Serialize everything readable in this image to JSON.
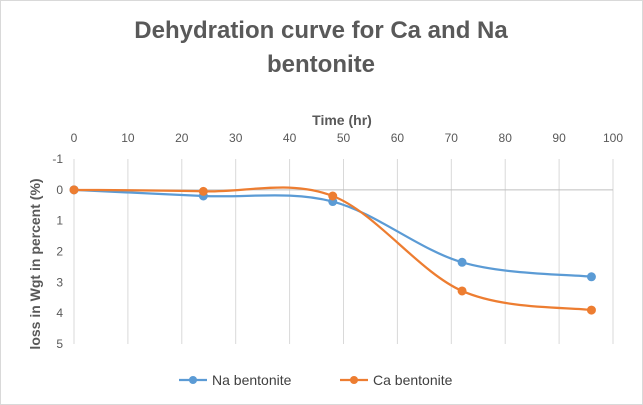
{
  "chart_data": {
    "type": "line",
    "title_lines": [
      "Dehydration curve for Ca and Na",
      "bentonite"
    ],
    "xlabel": "Time (hr)",
    "ylabel": "loss in Wgt in percent (%)",
    "x_ticks": [
      "0",
      "10",
      "20",
      "30",
      "40",
      "50",
      "60",
      "70",
      "80",
      "90",
      "100"
    ],
    "y_ticks": [
      "-1",
      "0",
      "1",
      "2",
      "3",
      "4",
      "5"
    ],
    "xlim": [
      0,
      100
    ],
    "ylim": [
      -1,
      5
    ],
    "y_axis_reversed": true,
    "x_axis_position": "top",
    "grid": "vertical",
    "legend_position": "bottom",
    "x": [
      0,
      24,
      48,
      72,
      96
    ],
    "series": [
      {
        "name": "Na bentonite",
        "color": "#5b9bd5",
        "values": [
          0,
          0.2,
          0.38,
          2.35,
          2.82
        ]
      },
      {
        "name": "Ca bentonite",
        "color": "#ed7d31",
        "values": [
          0,
          0.05,
          0.2,
          3.28,
          3.9
        ]
      }
    ]
  }
}
